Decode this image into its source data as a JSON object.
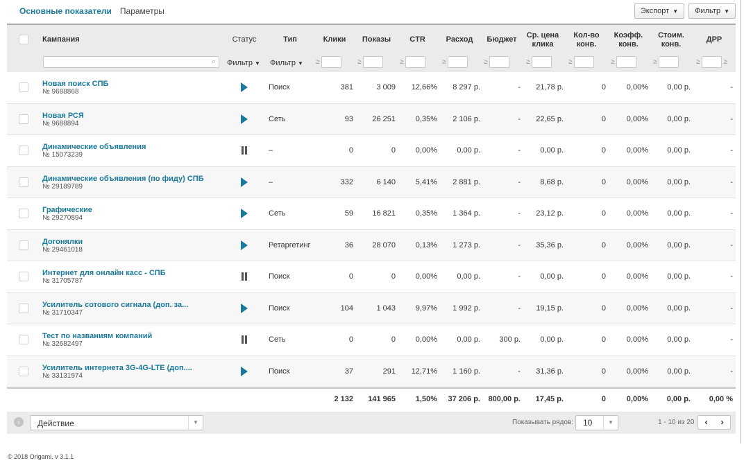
{
  "tabs": [
    {
      "label": "Основные показатели",
      "active": true
    },
    {
      "label": "Параметры",
      "active": false
    }
  ],
  "toolbar": {
    "export_label": "Экспорт",
    "filter_label": "Фильтр"
  },
  "columns": {
    "campaign": "Кампания",
    "status": "Статус",
    "type": "Тип",
    "clicks": "Клики",
    "impressions": "Показы",
    "ctr": "CTR",
    "spend": "Расход",
    "budget": "Бюджет",
    "avg_cpc": "Ср. цена клика",
    "conversions": "Кол-во конв.",
    "conv_rate": "Коэфф. конв.",
    "conv_cost": "Стоим. конв.",
    "drr": "ДРР"
  },
  "filters": {
    "status_label": "Фильтр",
    "type_label": "Фильтр",
    "ge_symbol": "≥"
  },
  "rows": [
    {
      "name": "Новая поиск СПБ",
      "id": "№ 9688868",
      "status": "play",
      "type": "Поиск",
      "clicks": "381",
      "impressions": "3 009",
      "ctr": "12,66%",
      "spend": "8 297 р.",
      "budget": "-",
      "avg_cpc": "21,78 р.",
      "conversions": "0",
      "conv_rate": "0,00%",
      "conv_cost": "0,00 р.",
      "drr": "-"
    },
    {
      "name": "Новая РСЯ",
      "id": "№ 9688894",
      "status": "play",
      "type": "Сеть",
      "clicks": "93",
      "impressions": "26 251",
      "ctr": "0,35%",
      "spend": "2 106 р.",
      "budget": "-",
      "avg_cpc": "22,65 р.",
      "conversions": "0",
      "conv_rate": "0,00%",
      "conv_cost": "0,00 р.",
      "drr": "-"
    },
    {
      "name": "Динамические объявления",
      "id": "№ 15073239",
      "status": "pause",
      "type": "–",
      "clicks": "0",
      "impressions": "0",
      "ctr": "0,00%",
      "spend": "0,00 р.",
      "budget": "-",
      "avg_cpc": "0,00 р.",
      "conversions": "0",
      "conv_rate": "0,00%",
      "conv_cost": "0,00 р.",
      "drr": "-"
    },
    {
      "name": "Динамические объявления (по фиду) СПБ",
      "id": "№ 29189789",
      "status": "play",
      "type": "–",
      "clicks": "332",
      "impressions": "6 140",
      "ctr": "5,41%",
      "spend": "2 881 р.",
      "budget": "-",
      "avg_cpc": "8,68 р.",
      "conversions": "0",
      "conv_rate": "0,00%",
      "conv_cost": "0,00 р.",
      "drr": "-"
    },
    {
      "name": "Графические",
      "id": "№ 29270894",
      "status": "play",
      "type": "Сеть",
      "clicks": "59",
      "impressions": "16 821",
      "ctr": "0,35%",
      "spend": "1 364 р.",
      "budget": "-",
      "avg_cpc": "23,12 р.",
      "conversions": "0",
      "conv_rate": "0,00%",
      "conv_cost": "0,00 р.",
      "drr": "-"
    },
    {
      "name": "Догонялки",
      "id": "№ 29461018",
      "status": "play",
      "type": "Ретаргетинг",
      "clicks": "36",
      "impressions": "28 070",
      "ctr": "0,13%",
      "spend": "1 273 р.",
      "budget": "-",
      "avg_cpc": "35,36 р.",
      "conversions": "0",
      "conv_rate": "0,00%",
      "conv_cost": "0,00 р.",
      "drr": "-"
    },
    {
      "name": "Интернет для онлайн касс - СПБ",
      "id": "№ 31705787",
      "status": "pause",
      "type": "Поиск",
      "clicks": "0",
      "impressions": "0",
      "ctr": "0,00%",
      "spend": "0,00 р.",
      "budget": "-",
      "avg_cpc": "0,00 р.",
      "conversions": "0",
      "conv_rate": "0,00%",
      "conv_cost": "0,00 р.",
      "drr": "-"
    },
    {
      "name": "Усилитель сотового сигнала (доп. за...",
      "id": "№ 31710347",
      "status": "play",
      "type": "Поиск",
      "clicks": "104",
      "impressions": "1 043",
      "ctr": "9,97%",
      "spend": "1 992 р.",
      "budget": "-",
      "avg_cpc": "19,15 р.",
      "conversions": "0",
      "conv_rate": "0,00%",
      "conv_cost": "0,00 р.",
      "drr": "-"
    },
    {
      "name": "Тест по названиям компаний",
      "id": "№ 32682497",
      "status": "pause",
      "type": "Сеть",
      "clicks": "0",
      "impressions": "0",
      "ctr": "0,00%",
      "spend": "0,00 р.",
      "budget": "300 р.",
      "avg_cpc": "0,00 р.",
      "conversions": "0",
      "conv_rate": "0,00%",
      "conv_cost": "0,00 р.",
      "drr": "-"
    },
    {
      "name": "Усилитель интернета 3G-4G-LTE (доп....",
      "id": "№ 33131974",
      "status": "play",
      "type": "Поиск",
      "clicks": "37",
      "impressions": "291",
      "ctr": "12,71%",
      "spend": "1 160 р.",
      "budget": "-",
      "avg_cpc": "31,36 р.",
      "conversions": "0",
      "conv_rate": "0,00%",
      "conv_cost": "0,00 р.",
      "drr": "-"
    }
  ],
  "totals": {
    "clicks": "2 132",
    "impressions": "141 965",
    "ctr": "1,50%",
    "spend": "37 206 р.",
    "budget": "800,00 р.",
    "avg_cpc": "17,45 р.",
    "conversions": "0",
    "conv_rate": "0,00%",
    "conv_cost": "0,00 р.",
    "drr": "0,00 %"
  },
  "footer": {
    "action_label": "Действие",
    "rows_label": "Показывать рядов:",
    "rows_value": "10",
    "range": "1 - 10 из 20",
    "prev": "‹",
    "next": "›"
  },
  "copyright": "© 2018 Origami. v 3.1.1",
  "colors": {
    "accent": "#1a7a9c",
    "header_bg": "#ebebeb"
  }
}
